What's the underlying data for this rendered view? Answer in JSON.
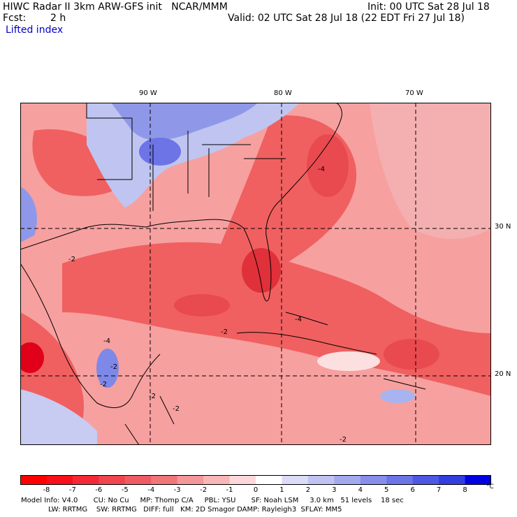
{
  "header": {
    "title_left": "HIWC Radar II 3km ARW-GFS init   NCAR/MMM",
    "init": "Init: 00 UTC Sat 28 Jul 18",
    "fcst_label": "Fcst:",
    "fcst_value": "2 h",
    "valid": "Valid: 02 UTC Sat 28 Jul 18 (22 EDT Fri 27 Jul 18)",
    "field_name": "Lifted index"
  },
  "map": {
    "longitude_labels": [
      "90 W",
      "80 W",
      "70 W"
    ],
    "latitude_labels": [
      "30 N",
      "20 N"
    ],
    "contour_labels": [
      "-4",
      "-2",
      "-2",
      "-4",
      "-2",
      "-2",
      "-2",
      "-2",
      "-4",
      "-2"
    ],
    "colors": {
      "strong_negative": "#e0001a",
      "negative": "#f06060",
      "weak_negative": "#f7a0a0",
      "neutral": "#ffffff",
      "positive": "#a8b4f0",
      "strong_positive": "#5060e0",
      "land_outline": "#000000"
    }
  },
  "colorbar": {
    "tick_labels": [
      "-8",
      "-7",
      "-6",
      "-5",
      "-4",
      "-3",
      "-2",
      "-1",
      "0",
      "1",
      "2",
      "3",
      "4",
      "5",
      "6",
      "7",
      "8"
    ],
    "unit": "°C",
    "colors": [
      "#ff0000",
      "#f70f1a",
      "#f32a35",
      "#f0454e",
      "#ee5c63",
      "#f07678",
      "#f4979a",
      "#f8b6b8",
      "#fcd8d9",
      "#ffffff",
      "#dcdcf6",
      "#c0c3f2",
      "#a4a9ee",
      "#888fea",
      "#6c74e6",
      "#4f58e2",
      "#323ede",
      "#0000e0"
    ]
  },
  "footer": {
    "line1": "Model Info: V4.0       CU: No Cu     MP: Thomp C/A     PBL: YSU       SF: Noah LSM     3.0 km   51 levels    18 sec",
    "line2": "LW: RRTMG    SW: RRTMG   DIFF: full   KM: 2D Smagor DAMP: Rayleigh3  SFLAY: MM5"
  }
}
